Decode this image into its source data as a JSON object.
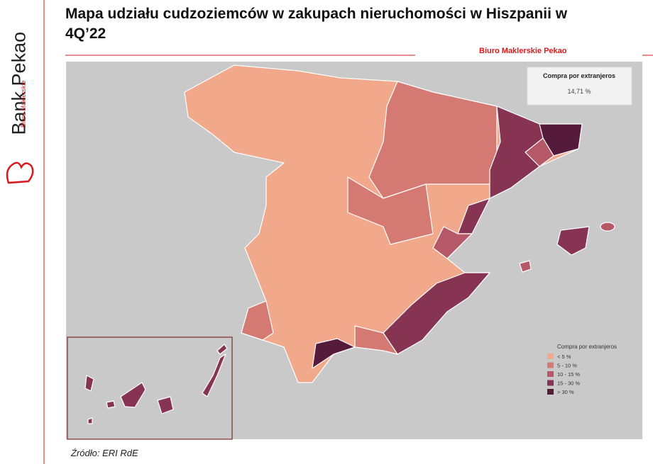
{
  "header": {
    "title": "Mapa udziału cudzoziemców w zakupach nieruchomości w Hiszpanii w 4Q’22",
    "brand": "Bank Pekao",
    "brand_sub": "Biuro Maklerskie",
    "publisher": "Biuro Maklerskie Pekao"
  },
  "summary": {
    "label": "Compra por extranjeros",
    "value": "14,71 %"
  },
  "legend": {
    "title": "Compra por extranjeros",
    "items": [
      {
        "label": "< 5 %",
        "color": "#f2a88b"
      },
      {
        "label": "5 - 10 %",
        "color": "#d57a72"
      },
      {
        "label": "10 - 15 %",
        "color": "#b65868"
      },
      {
        "label": "15 - 30 %",
        "color": "#873452"
      },
      {
        "label": "> 30 %",
        "color": "#561a3b"
      }
    ]
  },
  "source": "Źródło: ERI RdE"
}
